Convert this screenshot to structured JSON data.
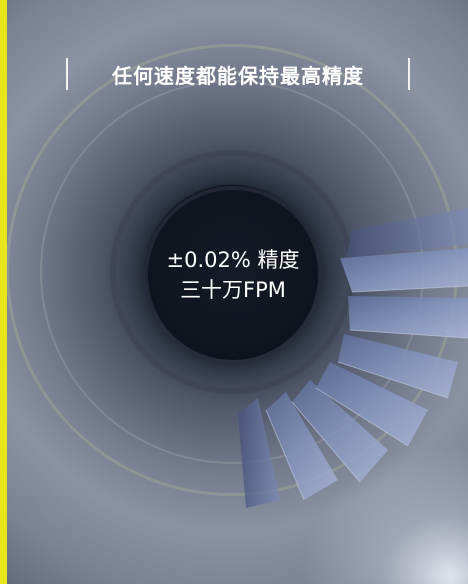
{
  "header": {
    "title": "任何速度都能保持最高精度"
  },
  "hub": {
    "accuracy": "±0.02% 精度",
    "speed": "三十万FPM"
  },
  "colors": {
    "accent": "#e8e51a",
    "hub": "#0f131d",
    "blade": "#7e8fb8",
    "text": "#ffffff"
  }
}
